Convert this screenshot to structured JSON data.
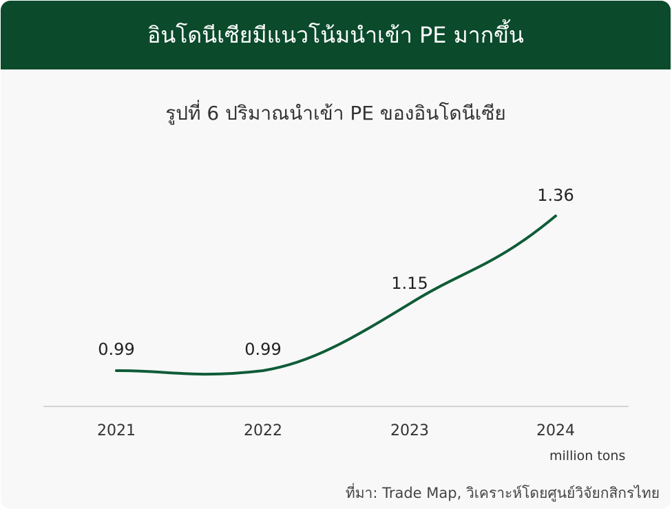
{
  "header": {
    "title": "อินโดนีเซียมีแนวโน้มนำเข้า PE มากขึ้น"
  },
  "subtitle": "รูปที่ 6 ปริมาณนำเข้า PE ของอินโดนีเซีย",
  "unit_label": "million tons",
  "source": "ที่มา: Trade Map, วิเคราะห์โดยศูนย์วิจัยกสิกรไทย",
  "colors": {
    "header_bg": "#0b4a2b",
    "line": "#0f5c38",
    "axis": "#c8c8c8"
  },
  "chart_data": {
    "type": "line",
    "categories": [
      "2021",
      "2022",
      "2023",
      "2024"
    ],
    "values": [
      0.99,
      0.99,
      1.15,
      1.36
    ],
    "data_labels": [
      "0.99",
      "0.99",
      "1.15",
      "1.36"
    ],
    "xlabel": "",
    "ylabel": "",
    "grid": false,
    "legend": "none"
  }
}
